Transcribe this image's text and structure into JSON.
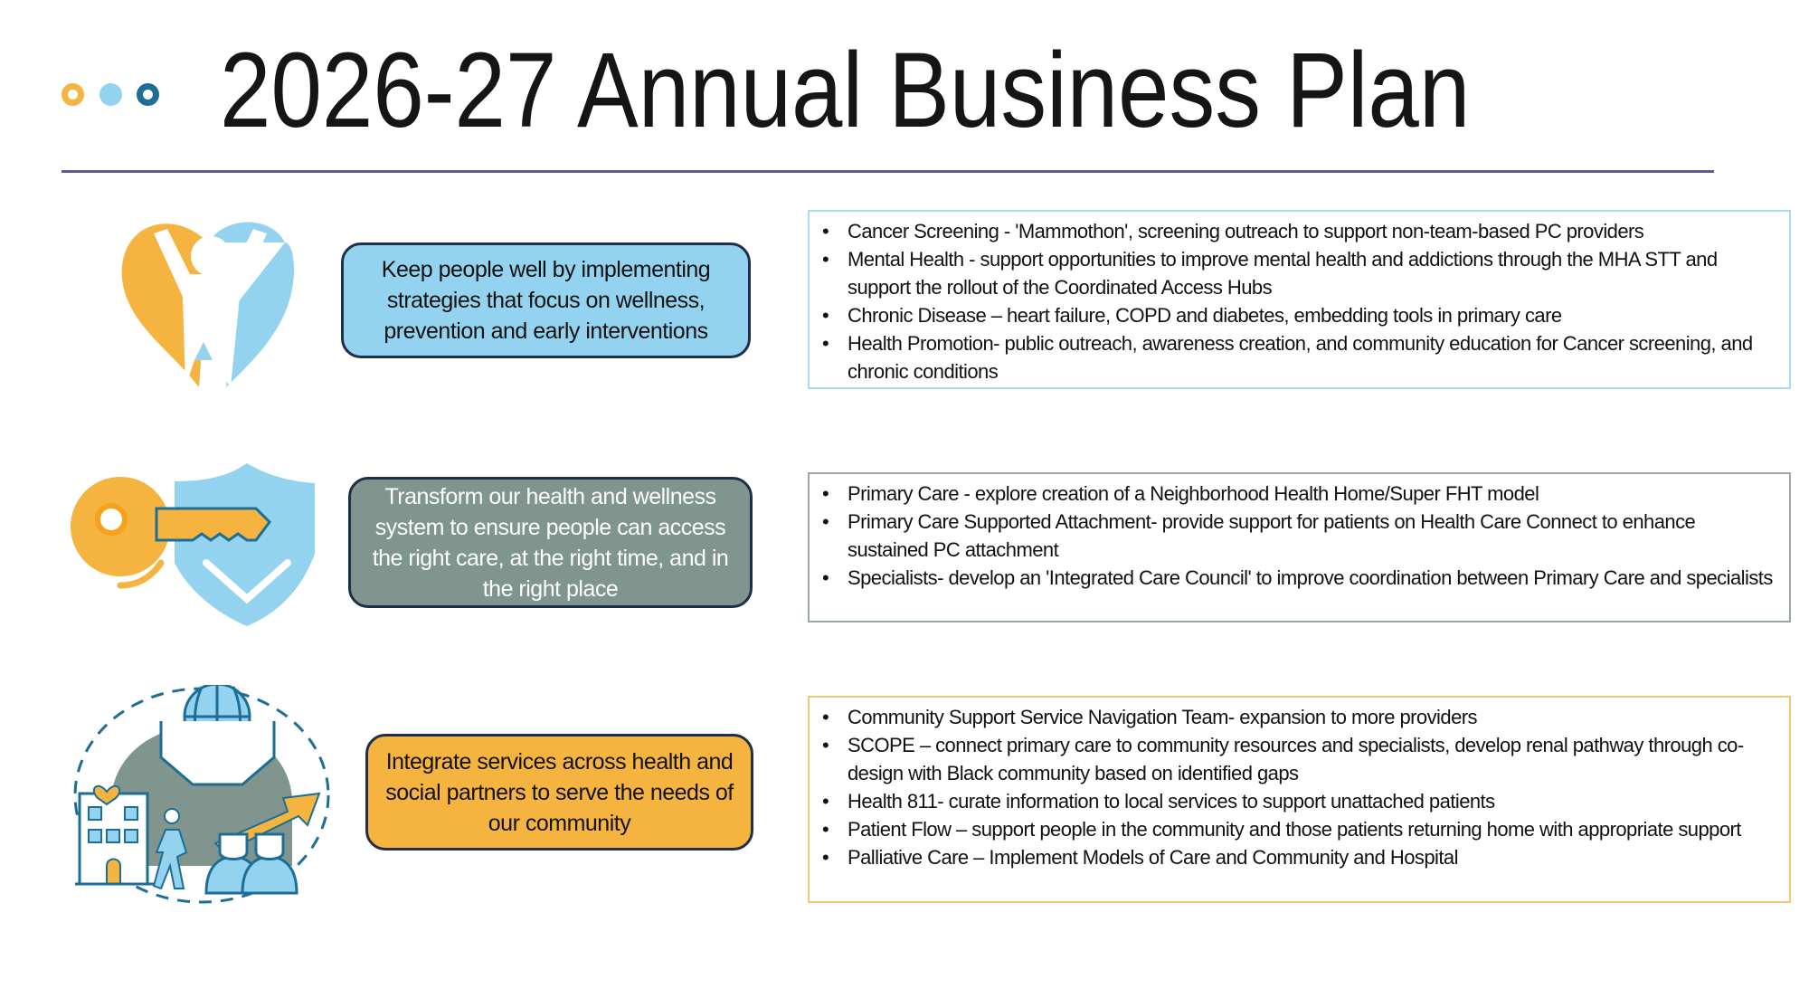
{
  "header": {
    "title": "2026-27 Annual Business Plan",
    "dot_colors": [
      "#f4b43f",
      "#93d3ef",
      "#1c6e96"
    ]
  },
  "colors": {
    "rule": "#5e5a96",
    "pill_border": "#1f2f4a",
    "blue": "#93d3ef",
    "gray": "#7f958d",
    "orange": "#f4b43f"
  },
  "rows": [
    {
      "icon": "person-heart-icon",
      "goal": "Keep people well by implementing strategies that focus on wellness, prevention and early interventions",
      "items": [
        "Cancer Screening - 'Mammothon', screening outreach to support non-team-based PC providers",
        "Mental Health - support opportunities to improve mental health and addictions through the MHA STT and support the rollout of the Coordinated Access Hubs",
        "Chronic Disease – heart failure, COPD and diabetes, embedding tools in primary care",
        "Health Promotion- public outreach, awareness creation, and community education for Cancer screening, and chronic conditions"
      ]
    },
    {
      "icon": "key-shield-icon",
      "goal": "Transform our health and wellness system to ensure people can access the right care, at the right time, and in the right place",
      "items": [
        "Primary Care - explore creation of a Neighborhood Health Home/Super FHT model",
        "Primary Care Supported Attachment- provide support for patients on Health Care Connect to enhance sustained PC attachment",
        "Specialists- develop an 'Integrated Care Council' to improve coordination between Primary Care and specialists"
      ]
    },
    {
      "icon": "community-integration-icon",
      "goal": "Integrate services across health and social partners to serve the needs of our community",
      "items": [
        "Community Support Service Navigation Team- expansion to more providers",
        "SCOPE – connect primary care to community resources and specialists, develop renal pathway through co-design with Black community based on identified gaps",
        "Health 811- curate information to local services to support unattached patients",
        "Patient Flow – support people in the community and those patients returning home with appropriate support",
        "Palliative Care – Implement Models of Care and Community and Hospital"
      ]
    }
  ]
}
